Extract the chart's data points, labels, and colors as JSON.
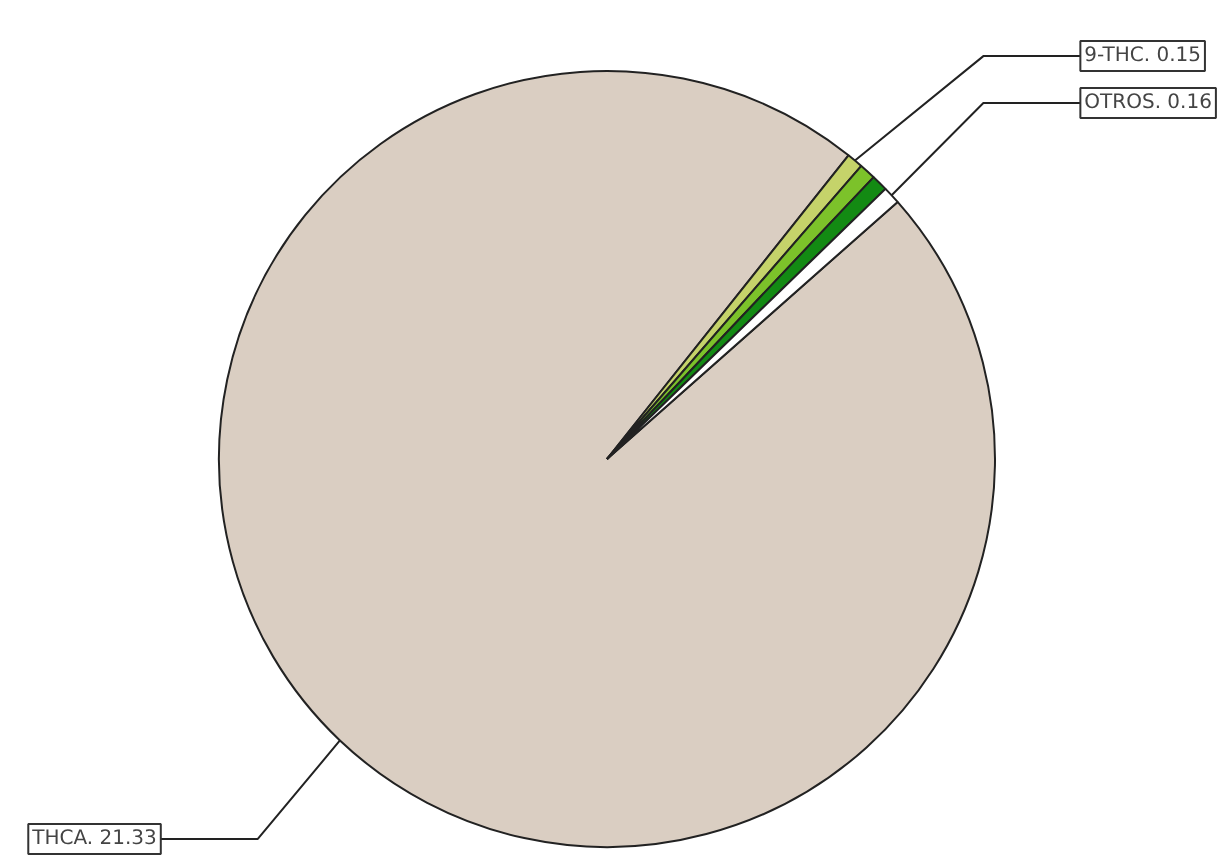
{
  "chart_data": {
    "type": "pie",
    "categories": [
      "THCA. 21.33",
      "9-THC. 0.15",
      null,
      null,
      "OTROS. 0.16"
    ],
    "values": [
      21.33,
      0.15,
      0.15,
      0.15,
      0.16
    ],
    "colors": [
      "#dacec2",
      "#c5d36a",
      "#7cc22a",
      "#138a13",
      "#ffffff"
    ]
  }
}
